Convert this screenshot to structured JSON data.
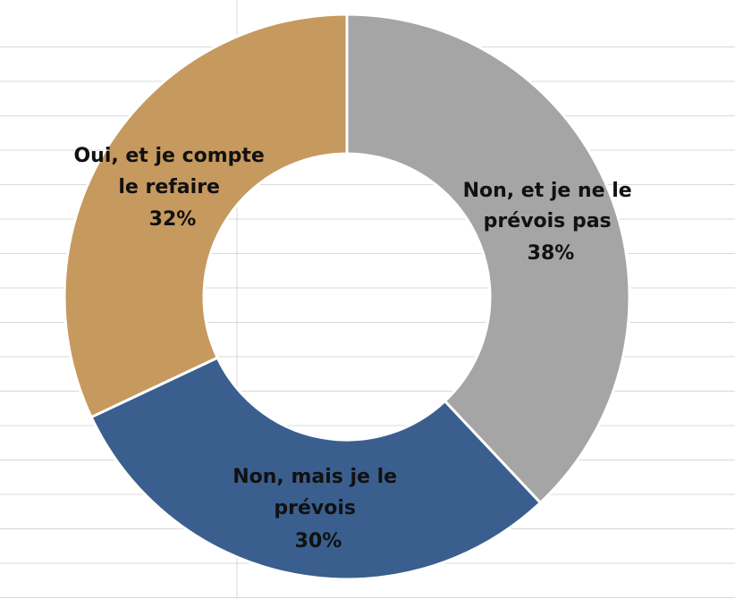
{
  "chart_data": {
    "type": "pie",
    "variant": "donut",
    "title": "",
    "legend": "none",
    "slices": [
      {
        "label_lines": [
          "Non, et je ne le",
          "prévois pas"
        ],
        "value": 38,
        "value_label": "38%",
        "color": "#a5a5a5"
      },
      {
        "label_lines": [
          "Non, mais je le",
          "prévois"
        ],
        "value": 30,
        "value_label": "30%",
        "color": "#3a5f8e"
      },
      {
        "label_lines": [
          "Oui, et je compte",
          "le refaire"
        ],
        "value": 32,
        "value_label": "32%",
        "color": "#c6995f"
      }
    ]
  },
  "colors": {
    "slice_border": "#ffffff",
    "gridline": "#d9d9d9",
    "label_text": "#111111"
  }
}
